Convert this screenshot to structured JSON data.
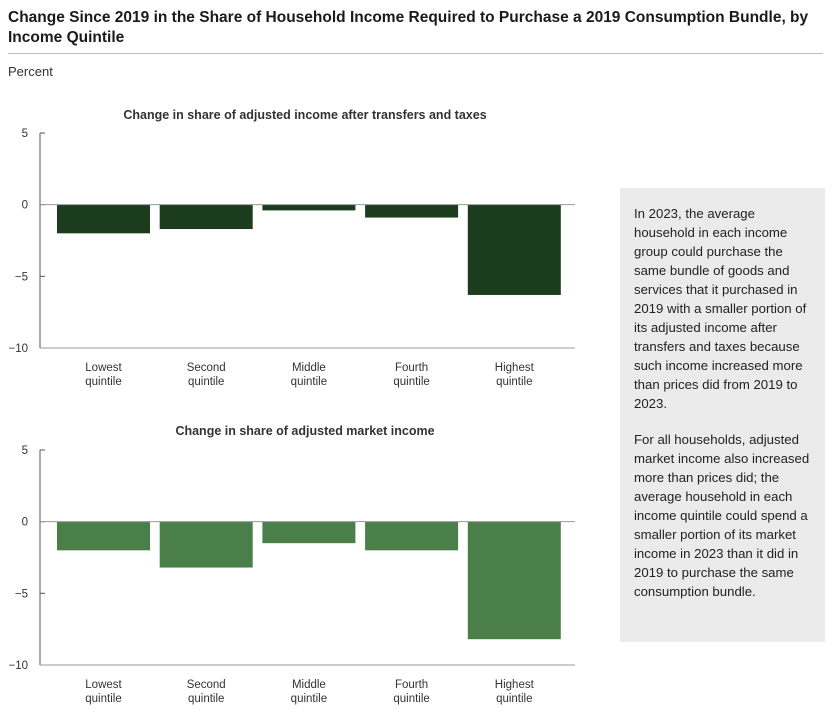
{
  "header": {
    "title": "Change Since 2019 in the Share of Household Income Required to Purchase a 2019 Consumption Bundle, by Income Quintile",
    "unit": "Percent"
  },
  "sidebar": {
    "paragraphs": [
      "In 2023, the average household in each income group could purchase the same bundle of goods and services that it purchased in 2019 with a smaller portion of its adjusted income after transfers and taxes because such income increased more than prices did from 2019 to 2023.",
      "For all households, adjusted market income also increased more than prices did; the average household in each income quintile could spend a smaller portion of its market income in 2023 than it did in 2019 to purchase the same consumption bundle."
    ]
  },
  "chart_data": [
    {
      "type": "bar",
      "title": "Change in share of adjusted income after transfers and taxes",
      "categories": [
        [
          "Lowest",
          "quintile"
        ],
        [
          "Second",
          "quintile"
        ],
        [
          "Middle",
          "quintile"
        ],
        [
          "Fourth",
          "quintile"
        ],
        [
          "Highest",
          "quintile"
        ]
      ],
      "values": [
        -2.0,
        -1.7,
        -0.4,
        -0.9,
        -6.3
      ],
      "ylim": [
        -10,
        5
      ],
      "yticks": [
        5,
        0,
        -5,
        -10
      ],
      "ytick_labels": [
        "5",
        "0",
        "−5",
        "−10"
      ],
      "color": "#1b3d1e",
      "grid": false
    },
    {
      "type": "bar",
      "title": "Change in share of adjusted market income",
      "categories": [
        [
          "Lowest",
          "quintile"
        ],
        [
          "Second",
          "quintile"
        ],
        [
          "Middle",
          "quintile"
        ],
        [
          "Fourth",
          "quintile"
        ],
        [
          "Highest",
          "quintile"
        ]
      ],
      "values": [
        -2.0,
        -3.2,
        -1.5,
        -2.0,
        -8.2
      ],
      "ylim": [
        -10,
        5
      ],
      "yticks": [
        5,
        0,
        -5,
        -10
      ],
      "ytick_labels": [
        "5",
        "0",
        "−5",
        "−10"
      ],
      "color": "#4a7f4a",
      "grid": false
    }
  ]
}
